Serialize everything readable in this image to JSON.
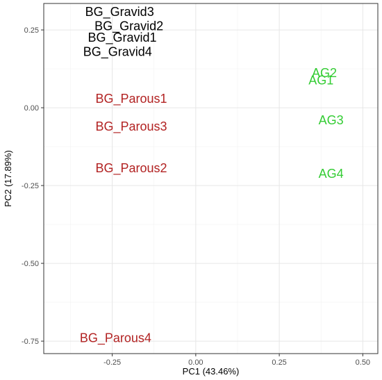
{
  "chart_data": {
    "type": "scatter",
    "title": "",
    "xlabel": "PC1 (43.46%)",
    "ylabel": "PC2 (17.89%)",
    "xlim": [
      -0.455,
      0.545
    ],
    "ylim": [
      -0.79,
      0.335
    ],
    "x_ticks": [
      -0.25,
      0.0,
      0.25,
      0.5
    ],
    "x_tick_labels": [
      "-0.25",
      "0.00",
      "0.25",
      "0.50"
    ],
    "y_ticks": [
      -0.75,
      -0.5,
      -0.25,
      0.0,
      0.25
    ],
    "y_tick_labels": [
      "-0.75",
      "-0.50",
      "-0.25",
      "0.00",
      "0.25"
    ],
    "grid": true,
    "legend": "none",
    "colors": {
      "BG_Gravid": "#000000",
      "BG_Parous": "#b22222",
      "AG": "#33cc33"
    },
    "points": [
      {
        "label": "BG_Gravid3",
        "x": -0.228,
        "y": 0.308,
        "group": "BG_Gravid"
      },
      {
        "label": "BG_Gravid2",
        "x": -0.2,
        "y": 0.263,
        "group": "BG_Gravid"
      },
      {
        "label": "BG_Gravid1",
        "x": -0.22,
        "y": 0.226,
        "group": "BG_Gravid"
      },
      {
        "label": "BG_Gravid4",
        "x": -0.234,
        "y": 0.18,
        "group": "BG_Gravid"
      },
      {
        "label": "BG_Parous1",
        "x": -0.193,
        "y": 0.029,
        "group": "BG_Parous"
      },
      {
        "label": "BG_Parous3",
        "x": -0.193,
        "y": -0.06,
        "group": "BG_Parous"
      },
      {
        "label": "BG_Parous2",
        "x": -0.193,
        "y": -0.194,
        "group": "BG_Parous"
      },
      {
        "label": "BG_Parous4",
        "x": -0.24,
        "y": -0.74,
        "group": "BG_Parous"
      },
      {
        "label": "AG2",
        "x": 0.385,
        "y": 0.112,
        "group": "AG"
      },
      {
        "label": "AG1",
        "x": 0.375,
        "y": 0.088,
        "group": "AG"
      },
      {
        "label": "AG3",
        "x": 0.405,
        "y": -0.04,
        "group": "AG"
      },
      {
        "label": "AG4",
        "x": 0.405,
        "y": -0.212,
        "group": "AG"
      }
    ]
  }
}
